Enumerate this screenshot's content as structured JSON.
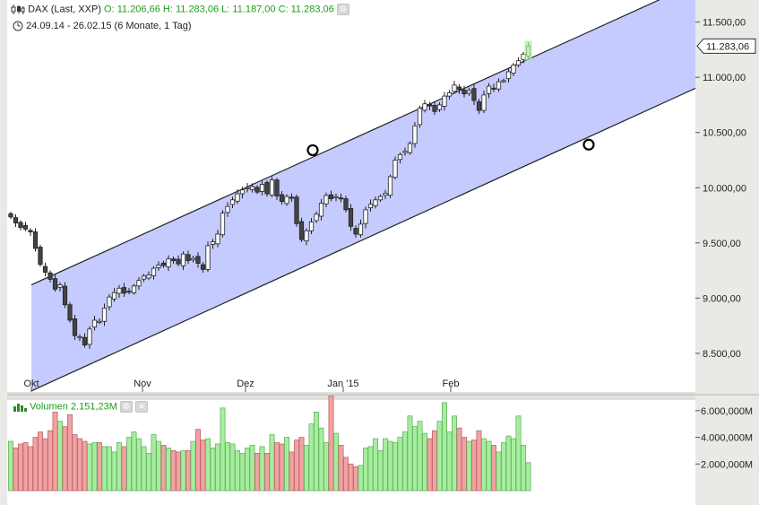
{
  "header": {
    "instrument": "DAX (Last, XXP)",
    "open": "O: 11.206,66",
    "high": "H: 11.283,06",
    "low": "L: 11.187,00",
    "close": "C: 11.283,06",
    "period": "24.09.14 - 26.02.15 (6 Monate, 1 Tag)"
  },
  "last_price": "11.283,06",
  "volume_panel": {
    "label": "Volumen",
    "value": "2.151,23M"
  },
  "colors": {
    "channel_fill": "#c2c8ff",
    "up_volume": "#a6ee9e",
    "down_volume": "#f0a3a3",
    "header_values": "#1a9e1a"
  },
  "chart_data": [
    {
      "type": "candlestick",
      "x_axis": {
        "ticks": [
          "Okt",
          "Nov",
          "Dez",
          "Jan '15",
          "Feb"
        ]
      },
      "y_axis": {
        "ticks": [
          "11.500,00",
          "11.000,00",
          "10.500,00",
          "10.000,00",
          "9.500,00",
          "9.000,00",
          "8.500,00"
        ],
        "range": [
          8150,
          11700
        ]
      },
      "channel": {
        "upper": {
          "start": 9120,
          "end": 11850
        },
        "lower": {
          "start": 8160,
          "end": 10900
        },
        "anchor_points": [
          10340,
          10390
        ]
      },
      "sessions": 106,
      "close": [
        9735,
        9680,
        9640,
        9625,
        9600,
        9450,
        9305,
        9235,
        9170,
        9080,
        9120,
        8940,
        8800,
        8660,
        8650,
        8575,
        8720,
        8800,
        8790,
        8910,
        9010,
        9050,
        9090,
        9045,
        9060,
        9110,
        9160,
        9200,
        9210,
        9270,
        9300,
        9295,
        9355,
        9340,
        9310,
        9400,
        9340,
        9360,
        9315,
        9260,
        9475,
        9510,
        9580,
        9770,
        9830,
        9890,
        9945,
        9980,
        10000,
        10010,
        9960,
        10030,
        9945,
        10070,
        9925,
        9875,
        9920,
        9910,
        9675,
        9530,
        9610,
        9690,
        9760,
        9860,
        9930,
        9900,
        9920,
        9900,
        9800,
        9650,
        9580,
        9670,
        9800,
        9850,
        9890,
        9920,
        9950,
        10100,
        10250,
        10300,
        10330,
        10400,
        10560,
        10720,
        10760,
        10740,
        10690,
        10750,
        10830,
        10860,
        10930,
        10890,
        10850,
        10880,
        10790,
        10700,
        10840,
        10920,
        10900,
        10960,
        10970,
        11050,
        11110,
        11150,
        11210,
        11283
      ],
      "volume_millions": [
        3700,
        3200,
        3500,
        3600,
        3300,
        4000,
        4400,
        3900,
        4500,
        5900,
        5200,
        4800,
        5700,
        4200,
        3900,
        3700,
        3500,
        3600,
        3600,
        3300,
        3300,
        2900,
        3600,
        3300,
        4000,
        4400,
        3900,
        3300,
        2800,
        4200,
        3700,
        3400,
        3200,
        3000,
        2900,
        3000,
        3000,
        3700,
        4600,
        3800,
        3900,
        3200,
        3500,
        6200,
        3600,
        3500,
        3000,
        2800,
        3200,
        3400,
        2800,
        3300,
        2800,
        4200,
        3600,
        3500,
        4000,
        2900,
        3800,
        4000,
        3400,
        5000,
        5900,
        4700,
        3600,
        7100,
        4300,
        3400,
        2500,
        2000,
        1800,
        1900,
        3200,
        3300,
        3900,
        3000,
        3900,
        3700,
        3600,
        4000,
        4400,
        5600,
        4800,
        5200,
        4300,
        3900,
        4500,
        5200,
        6600,
        4400,
        5600,
        4700,
        4000,
        3700,
        3800,
        4500,
        3900,
        3700,
        3400,
        2900,
        3600,
        4100,
        3900,
        5600,
        3400,
        2100
      ]
    }
  ]
}
